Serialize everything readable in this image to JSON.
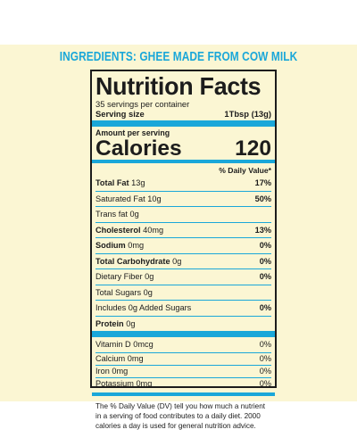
{
  "ingredients": "INGREDIENTS: GHEE MADE FROM COW MILK",
  "title": "Nutrition Facts",
  "servings_per_container": "35 servings per container",
  "serving_size": {
    "label": "Serving size",
    "value": "1Tbsp (13g)"
  },
  "amount_per_serving": "Amount per serving",
  "calories": {
    "label": "Calories",
    "value": "120"
  },
  "daily_value_header": "% Daily Value*",
  "nutrients": [
    {
      "bold_name": "Total Fat",
      "amount": " 13g",
      "pct": "17%"
    },
    {
      "bold_name": "",
      "amount": "Saturated Fat 10g",
      "pct": "50%"
    },
    {
      "bold_name": "",
      "amount": "Trans fat 0g",
      "pct": ""
    },
    {
      "bold_name": "Cholesterol",
      "amount": " 40mg",
      "pct": "13%"
    },
    {
      "bold_name": "Sodium",
      "amount": " 0mg",
      "pct": "0%"
    },
    {
      "bold_name": "Total Carbohydrate",
      "amount": " 0g",
      "pct": "0%"
    },
    {
      "bold_name": "",
      "amount": "Dietary Fiber 0g",
      "pct": "0%"
    },
    {
      "bold_name": "",
      "amount": "Total Sugars 0g",
      "pct": ""
    },
    {
      "bold_name": "",
      "amount": "Includes 0g Added Sugars",
      "pct": "0%"
    },
    {
      "bold_name": "Protein",
      "amount": " 0g",
      "pct": ""
    }
  ],
  "vitamins": [
    {
      "name": "Vitamin D 0mcg",
      "pct": "0%"
    },
    {
      "name": "Calcium 0mg",
      "pct": "0%"
    },
    {
      "name": "Iron 0mg",
      "pct": "0%"
    },
    {
      "name": "Potassium 0mg",
      "pct": "0%"
    }
  ],
  "footnote": "The % Daily Value (DV) tell you how much a nutrient in a serving of food contributes to a daily diet. 2000 calories a day is used for general nutrition advice.",
  "colors": {
    "accent": "#1aa7d9",
    "background": "#fbf6d3",
    "text": "#1c1c1c"
  }
}
